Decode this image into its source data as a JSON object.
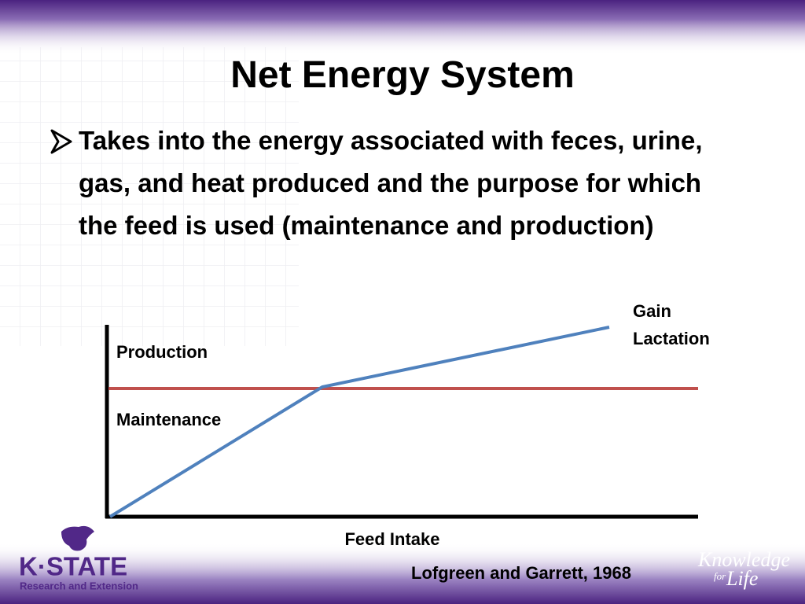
{
  "header": {
    "title": "Net Energy System"
  },
  "bullets": [
    {
      "text": "Takes into the energy associated with feces, urine, gas, and heat produced and the purpose for which the feed is used (maintenance and production)"
    }
  ],
  "diagram": {
    "y_labels": [
      "Production",
      "Maintenance"
    ],
    "curve_labels": [
      "Gain",
      "Lactation"
    ],
    "x_label": "Feed Intake"
  },
  "citation": "Lofgreen and Garrett, 1968",
  "footer": {
    "logo_name": "K·STATE",
    "logo_subtitle": "Research and Extension",
    "tagline": [
      "Knowledge",
      "for",
      "Life"
    ]
  }
}
